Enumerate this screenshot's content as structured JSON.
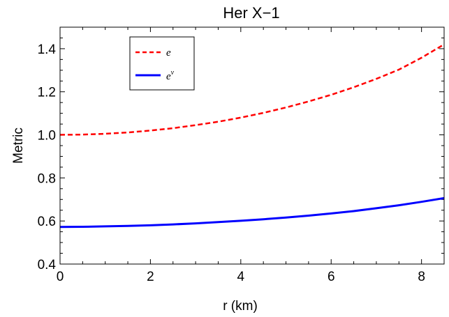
{
  "chart_data": {
    "type": "line",
    "title": "Her X−1",
    "xlabel": "r (km)",
    "ylabel": "Metric",
    "xlim": [
      0,
      8.5
    ],
    "ylim": [
      0.4,
      1.5
    ],
    "xticks": [
      "0",
      "2",
      "4",
      "6",
      "8"
    ],
    "yticks": [
      "0.4",
      "0.6",
      "0.8",
      "1.0",
      "1.2",
      "1.4"
    ],
    "grid": false,
    "legend_position": "top-left",
    "series": [
      {
        "name": "e",
        "name_superscript": "",
        "color": "#ff0000",
        "style": "dashed",
        "x": [
          0,
          0.5,
          1,
          1.5,
          2,
          2.5,
          3,
          3.5,
          4,
          4.5,
          5,
          5.5,
          6,
          6.5,
          7,
          7.5,
          8,
          8.5
        ],
        "y": [
          1.0,
          1.001,
          1.005,
          1.011,
          1.02,
          1.031,
          1.045,
          1.061,
          1.08,
          1.102,
          1.127,
          1.155,
          1.186,
          1.221,
          1.26,
          1.303,
          1.358,
          1.42
        ]
      },
      {
        "name": "e",
        "name_superscript": "ν",
        "color": "#0000ff",
        "style": "solid",
        "x": [
          0,
          0.5,
          1,
          1.5,
          2,
          2.5,
          3,
          3.5,
          4,
          4.5,
          5,
          5.5,
          6,
          6.5,
          7,
          7.5,
          8,
          8.5
        ],
        "y": [
          0.572,
          0.573,
          0.575,
          0.577,
          0.58,
          0.584,
          0.589,
          0.595,
          0.601,
          0.608,
          0.616,
          0.625,
          0.635,
          0.646,
          0.659,
          0.673,
          0.689,
          0.706
        ]
      }
    ]
  }
}
